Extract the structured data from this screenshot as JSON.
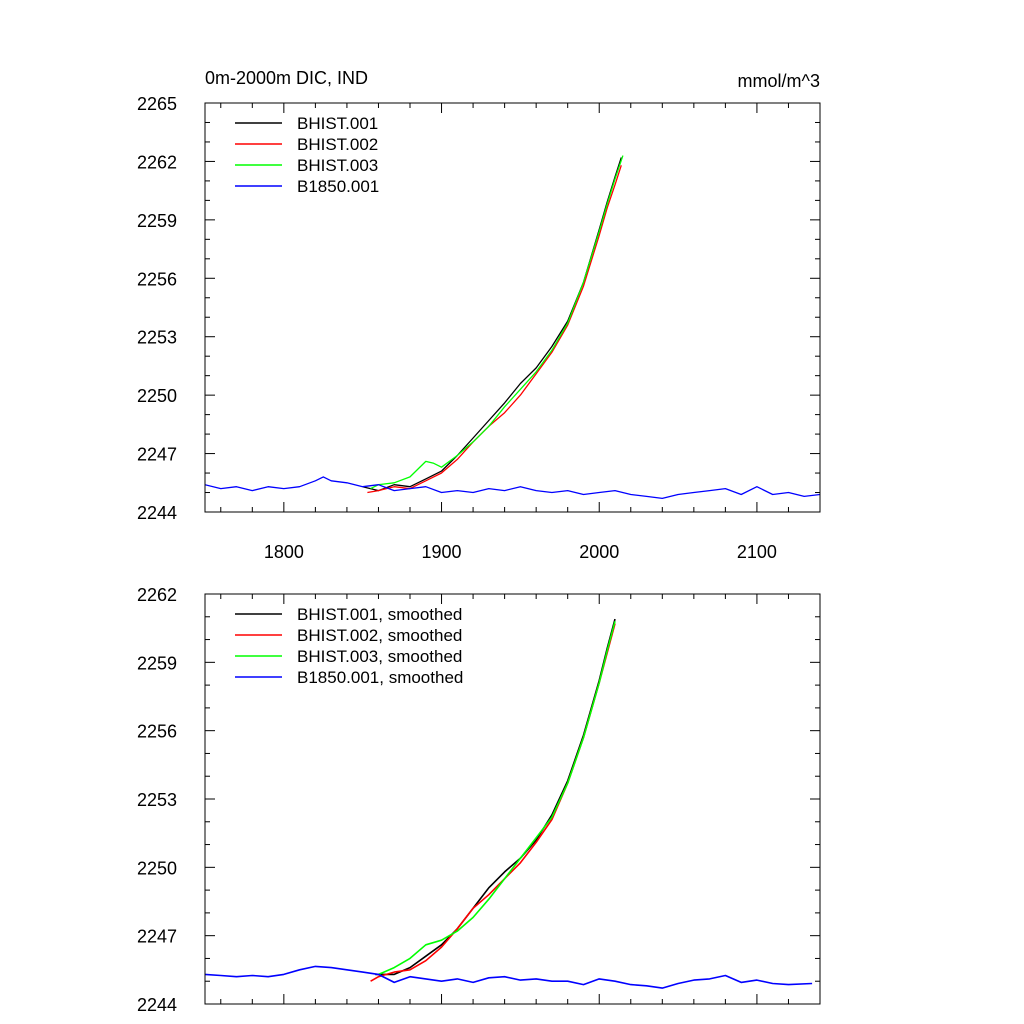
{
  "chart_data": [
    {
      "type": "line",
      "title": "0m-2000m DIC, IND",
      "units": "mmol/m^3",
      "xlabel": "",
      "ylabel": "",
      "xlim": [
        1750,
        2140
      ],
      "ylim": [
        2244,
        2265
      ],
      "xticks": [
        1800,
        1900,
        2000,
        2100
      ],
      "xtick_labels": [
        "1800",
        "1900",
        "2000",
        "2100"
      ],
      "yticks": [
        2244,
        2247,
        2250,
        2253,
        2256,
        2259,
        2262,
        2265
      ],
      "ytick_labels": [
        "2244",
        "2247",
        "2250",
        "2253",
        "2256",
        "2259",
        "2262",
        "2265"
      ],
      "legend_position": "top-left",
      "grid": false,
      "smoothed": false,
      "series": [
        {
          "name": "BHIST.001",
          "color": "#000000",
          "x": [
            1850,
            1860,
            1870,
            1880,
            1890,
            1900,
            1910,
            1920,
            1930,
            1940,
            1950,
            1960,
            1970,
            1980,
            1990,
            2000,
            2005,
            2010,
            2014
          ],
          "y": [
            2245.3,
            2245.1,
            2245.4,
            2245.3,
            2245.7,
            2246.1,
            2246.9,
            2247.8,
            2248.7,
            2249.6,
            2250.6,
            2251.4,
            2252.5,
            2253.8,
            2255.8,
            2258.5,
            2259.9,
            2261.2,
            2262.2
          ]
        },
        {
          "name": "BHIST.002",
          "color": "#ff0000",
          "x": [
            1853,
            1860,
            1870,
            1880,
            1890,
            1900,
            1910,
            1920,
            1930,
            1940,
            1950,
            1960,
            1970,
            1980,
            1990,
            2000,
            2005,
            2010,
            2014
          ],
          "y": [
            2245.0,
            2245.1,
            2245.3,
            2245.2,
            2245.6,
            2246.0,
            2246.7,
            2247.6,
            2248.4,
            2249.1,
            2250.0,
            2251.1,
            2252.2,
            2253.6,
            2255.6,
            2258.2,
            2259.6,
            2260.8,
            2261.8
          ]
        },
        {
          "name": "BHIST.003",
          "color": "#00ff00",
          "x": [
            1855,
            1860,
            1870,
            1880,
            1890,
            1895,
            1900,
            1910,
            1920,
            1930,
            1940,
            1950,
            1960,
            1970,
            1980,
            1990,
            2000,
            2005,
            2010,
            2015
          ],
          "y": [
            2245.2,
            2245.4,
            2245.5,
            2245.8,
            2246.6,
            2246.5,
            2246.3,
            2246.9,
            2247.6,
            2248.4,
            2249.4,
            2250.3,
            2251.2,
            2252.3,
            2253.7,
            2255.8,
            2258.4,
            2259.8,
            2261.1,
            2262.3
          ]
        },
        {
          "name": "B1850.001",
          "color": "#0000ff",
          "x": [
            1750,
            1760,
            1770,
            1780,
            1790,
            1800,
            1810,
            1820,
            1825,
            1830,
            1840,
            1850,
            1860,
            1870,
            1880,
            1890,
            1900,
            1910,
            1920,
            1930,
            1940,
            1950,
            1960,
            1970,
            1980,
            1990,
            2000,
            2010,
            2020,
            2030,
            2040,
            2050,
            2060,
            2070,
            2080,
            2090,
            2100,
            2110,
            2120,
            2130,
            2140
          ],
          "y": [
            2245.4,
            2245.2,
            2245.3,
            2245.1,
            2245.3,
            2245.2,
            2245.3,
            2245.6,
            2245.8,
            2245.6,
            2245.5,
            2245.3,
            2245.4,
            2245.1,
            2245.2,
            2245.3,
            2245.0,
            2245.1,
            2245.0,
            2245.2,
            2245.1,
            2245.3,
            2245.1,
            2245.0,
            2245.1,
            2244.9,
            2245.0,
            2245.1,
            2244.9,
            2244.8,
            2244.7,
            2244.9,
            2245.0,
            2245.1,
            2245.2,
            2244.9,
            2245.3,
            2244.9,
            2245.0,
            2244.8,
            2244.9
          ]
        }
      ]
    },
    {
      "type": "line",
      "title": "",
      "xlabel": "",
      "ylabel": "",
      "xlim": [
        1750,
        2140
      ],
      "ylim": [
        2244,
        2262
      ],
      "xticks": [
        1800,
        1900,
        2000,
        2100
      ],
      "yticks": [
        2244,
        2247,
        2250,
        2253,
        2256,
        2259,
        2262
      ],
      "ytick_labels": [
        "2244",
        "2247",
        "2250",
        "2253",
        "2256",
        "2259",
        "2262"
      ],
      "legend_position": "top-left",
      "grid": false,
      "smoothed": true,
      "series": [
        {
          "name": "BHIST.001, smoothed",
          "color": "#000000",
          "x": [
            1858,
            1870,
            1880,
            1890,
            1900,
            1910,
            1920,
            1930,
            1940,
            1950,
            1960,
            1970,
            1980,
            1990,
            2000,
            2005,
            2010
          ],
          "y": [
            2245.3,
            2245.3,
            2245.6,
            2246.1,
            2246.6,
            2247.3,
            2248.2,
            2249.1,
            2249.8,
            2250.4,
            2251.2,
            2252.3,
            2253.8,
            2255.8,
            2258.2,
            2259.6,
            2260.9
          ]
        },
        {
          "name": "BHIST.002, smoothed",
          "color": "#ff0000",
          "x": [
            1855,
            1860,
            1870,
            1880,
            1890,
            1900,
            1910,
            1920,
            1930,
            1940,
            1950,
            1960,
            1970,
            1980,
            1990,
            2000,
            2005,
            2010
          ],
          "y": [
            2245.0,
            2245.2,
            2245.4,
            2245.5,
            2245.9,
            2246.5,
            2247.3,
            2248.2,
            2248.8,
            2249.5,
            2250.2,
            2251.1,
            2252.1,
            2253.7,
            2255.7,
            2258.1,
            2259.4,
            2260.7
          ]
        },
        {
          "name": "BHIST.003, smoothed",
          "color": "#00ff00",
          "x": [
            1860,
            1870,
            1880,
            1890,
            1900,
            1910,
            1920,
            1930,
            1940,
            1950,
            1960,
            1970,
            1980,
            1990,
            2000,
            2005,
            2010
          ],
          "y": [
            2245.3,
            2245.6,
            2246.0,
            2246.6,
            2246.8,
            2247.2,
            2247.8,
            2248.6,
            2249.5,
            2250.4,
            2251.3,
            2252.2,
            2253.7,
            2255.7,
            2258.1,
            2259.5,
            2260.8
          ]
        },
        {
          "name": "B1850.001, smoothed",
          "color": "#0000ff",
          "x": [
            1750,
            1760,
            1770,
            1780,
            1790,
            1800,
            1810,
            1820,
            1830,
            1840,
            1850,
            1860,
            1870,
            1880,
            1890,
            1900,
            1910,
            1920,
            1930,
            1940,
            1950,
            1960,
            1970,
            1980,
            1990,
            2000,
            2010,
            2020,
            2030,
            2040,
            2050,
            2060,
            2070,
            2080,
            2090,
            2100,
            2110,
            2120,
            2135
          ],
          "y": [
            2245.3,
            2245.25,
            2245.2,
            2245.25,
            2245.2,
            2245.3,
            2245.5,
            2245.65,
            2245.6,
            2245.5,
            2245.4,
            2245.3,
            2244.95,
            2245.2,
            2245.1,
            2245.0,
            2245.1,
            2244.95,
            2245.15,
            2245.2,
            2245.05,
            2245.1,
            2245.0,
            2245.0,
            2244.85,
            2245.1,
            2245.0,
            2244.85,
            2244.8,
            2244.7,
            2244.9,
            2245.05,
            2245.1,
            2245.25,
            2244.95,
            2245.05,
            2244.9,
            2244.85,
            2244.9
          ]
        }
      ]
    }
  ]
}
